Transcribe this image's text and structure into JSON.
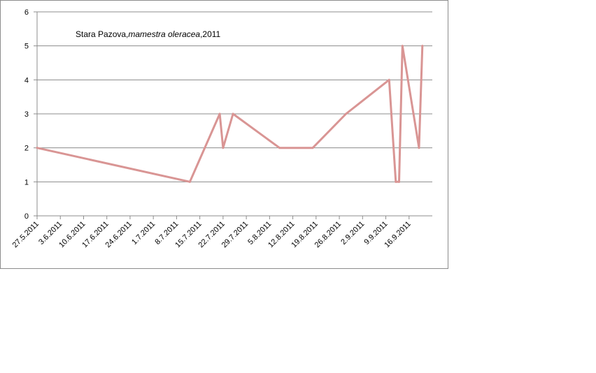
{
  "chart_data": {
    "type": "line",
    "title_parts": [
      "Stara Pazova,",
      "mamestra oleracea",
      ",2011"
    ],
    "xlabel": "",
    "ylabel": "",
    "ylim": [
      0,
      6
    ],
    "yticks": [
      0,
      1,
      2,
      3,
      4,
      5,
      6
    ],
    "xlim": [
      "2011-05-27",
      "2011-09-23"
    ],
    "xtick_labels": [
      "27.5.2011",
      "3.6.2011",
      "10.6.2011",
      "17.6.2011",
      "24.6.2011",
      "1.7.2011",
      "8.7.2011",
      "15.7.2011",
      "22.7.2011",
      "29.7.2011",
      "5.8.2011",
      "12.8.2011",
      "19.8.2011",
      "26.8.2011",
      "2.9.2011",
      "9.9.2011",
      "16.9.2011"
    ],
    "grid": true,
    "legend": "none",
    "color": "#d99594",
    "series": [
      {
        "x": [
          "2011-05-27",
          "2011-07-12",
          "2011-07-21",
          "2011-07-22",
          "2011-07-25",
          "2011-08-08",
          "2011-08-18",
          "2011-08-28",
          "2011-09-10",
          "2011-09-12",
          "2011-09-13",
          "2011-09-14",
          "2011-09-19",
          "2011-09-20"
        ],
        "values": [
          2,
          1,
          3,
          2,
          3,
          2,
          2,
          3,
          4,
          1,
          1,
          5,
          2,
          5
        ]
      }
    ]
  }
}
